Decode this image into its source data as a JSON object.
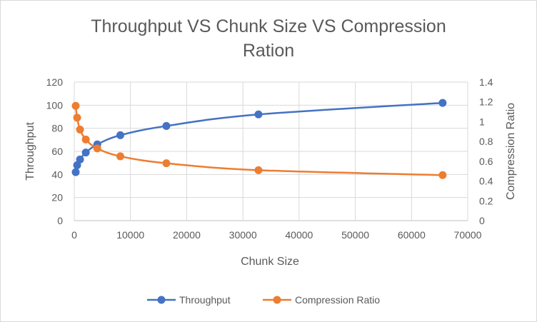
{
  "chart_data": {
    "type": "line",
    "title_lines": [
      "Throughput VS Chunk Size VS Compression",
      "Ration"
    ],
    "xlabel": "Chunk Size",
    "ylabel": "Throughput",
    "y2label": "Compression Ratio",
    "xlim": [
      0,
      70000
    ],
    "ylim": [
      0,
      120
    ],
    "y2lim": [
      0,
      1.4
    ],
    "x_ticks": [
      "0",
      "10000",
      "20000",
      "30000",
      "40000",
      "50000",
      "60000",
      "70000"
    ],
    "y_ticks": [
      "0",
      "20",
      "40",
      "60",
      "80",
      "100",
      "120"
    ],
    "y2_ticks": [
      "0",
      "0.2",
      "0.4",
      "0.6",
      "0.8",
      "1",
      "1.2",
      "1.4"
    ],
    "grid": true,
    "legend_position": "bottom",
    "series": [
      {
        "name": "Throughput",
        "axis": "left",
        "color": "#4472c4",
        "x": [
          256,
          512,
          1024,
          2048,
          4096,
          8192,
          16384,
          32768,
          65536
        ],
        "values": [
          42,
          48,
          53,
          59,
          66,
          74,
          82,
          92,
          102
        ]
      },
      {
        "name": "Compression Ratio",
        "axis": "right",
        "color": "#ed7d31",
        "x": [
          256,
          512,
          1024,
          2048,
          4096,
          8192,
          16384,
          32768,
          65536
        ],
        "values": [
          1.16,
          1.04,
          0.92,
          0.82,
          0.73,
          0.65,
          0.58,
          0.51,
          0.46
        ]
      }
    ]
  }
}
